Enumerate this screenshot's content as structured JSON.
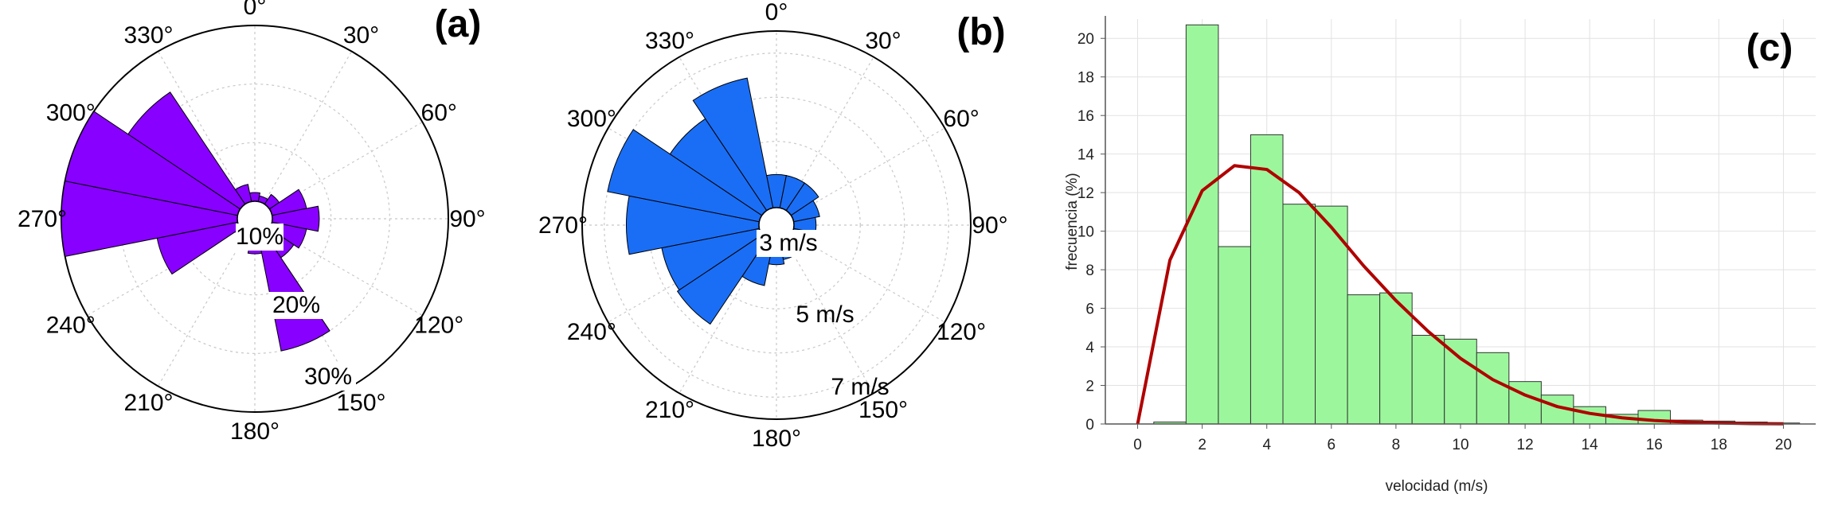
{
  "chart_data": [
    {
      "type": "polar-bar",
      "panel_label": "(a)",
      "color": "#8800ff",
      "angle_ticks": [
        "0°",
        "30°",
        "60°",
        "90°",
        "120°",
        "150°",
        "180°",
        "210°",
        "240°",
        "270°",
        "300°",
        "330°"
      ],
      "ring_labels": [
        "10%",
        "20%",
        "30%"
      ],
      "ring_values": [
        10,
        20,
        30
      ],
      "rmax": 30,
      "sectors": [
        {
          "center_deg": 0,
          "value": 1.5
        },
        {
          "center_deg": 22.5,
          "value": 1.0
        },
        {
          "center_deg": 45,
          "value": 2.0
        },
        {
          "center_deg": 67.5,
          "value": 6.0
        },
        {
          "center_deg": 90,
          "value": 8.0
        },
        {
          "center_deg": 112.5,
          "value": 6.0
        },
        {
          "center_deg": 135,
          "value": 5.0
        },
        {
          "center_deg": 157.5,
          "value": 20.0
        },
        {
          "center_deg": 180,
          "value": 3.0
        },
        {
          "center_deg": 202.5,
          "value": 1.0
        },
        {
          "center_deg": 225,
          "value": 1.0
        },
        {
          "center_deg": 247.5,
          "value": 14.0
        },
        {
          "center_deg": 270,
          "value": 30.0
        },
        {
          "center_deg": 292.5,
          "value": 30.0
        },
        {
          "center_deg": 315,
          "value": 23.0
        },
        {
          "center_deg": 337.5,
          "value": 3.0
        }
      ]
    },
    {
      "type": "polar-bar",
      "panel_label": "(b)",
      "color": "#1a6ef5",
      "angle_ticks": [
        "0°",
        "30°",
        "60°",
        "90°",
        "120°",
        "150°",
        "180°",
        "210°",
        "240°",
        "270°",
        "300°",
        "330°"
      ],
      "ring_labels": [
        "3 m/s",
        "5 m/s",
        "7 m/s"
      ],
      "ring_values": [
        3,
        5,
        7
      ],
      "rmax": 8,
      "sectors": [
        {
          "center_deg": 0,
          "value": 1.5
        },
        {
          "center_deg": 22.5,
          "value": 1.5
        },
        {
          "center_deg": 45,
          "value": 1.5
        },
        {
          "center_deg": 67.5,
          "value": 1.2
        },
        {
          "center_deg": 90,
          "value": 1.0
        },
        {
          "center_deg": 112.5,
          "value": 0.8
        },
        {
          "center_deg": 135,
          "value": 0.8
        },
        {
          "center_deg": 157.5,
          "value": 0.8
        },
        {
          "center_deg": 180,
          "value": 1.0
        },
        {
          "center_deg": 202.5,
          "value": 2.0
        },
        {
          "center_deg": 225,
          "value": 4.6
        },
        {
          "center_deg": 247.5,
          "value": 4.5
        },
        {
          "center_deg": 270,
          "value": 6.0
        },
        {
          "center_deg": 292.5,
          "value": 7.0
        },
        {
          "center_deg": 315,
          "value": 5.0
        },
        {
          "center_deg": 337.5,
          "value": 6.0
        }
      ]
    },
    {
      "type": "bar",
      "panel_label": "(c)",
      "xlabel": "velocidad (m/s)",
      "ylabel": "frecuencia (%)",
      "xlim": [
        -1,
        21
      ],
      "ylim": [
        0,
        21
      ],
      "xticks": [
        0,
        2,
        4,
        6,
        8,
        10,
        12,
        14,
        16,
        18,
        20
      ],
      "yticks": [
        0,
        2,
        4,
        6,
        8,
        10,
        12,
        14,
        16,
        18,
        20
      ],
      "bar_color": "#9cf79c",
      "line_color": "#b00000",
      "bins": [
        {
          "from": 0.5,
          "to": 1.5,
          "value": 0.1
        },
        {
          "from": 1.5,
          "to": 2.5,
          "value": 20.7
        },
        {
          "from": 2.5,
          "to": 3.5,
          "value": 9.2
        },
        {
          "from": 3.5,
          "to": 4.5,
          "value": 15.0
        },
        {
          "from": 4.5,
          "to": 5.5,
          "value": 11.4
        },
        {
          "from": 5.5,
          "to": 6.5,
          "value": 11.3
        },
        {
          "from": 6.5,
          "to": 7.5,
          "value": 6.7
        },
        {
          "from": 7.5,
          "to": 8.5,
          "value": 6.8
        },
        {
          "from": 8.5,
          "to": 9.5,
          "value": 4.6
        },
        {
          "from": 9.5,
          "to": 10.5,
          "value": 4.4
        },
        {
          "from": 10.5,
          "to": 11.5,
          "value": 3.7
        },
        {
          "from": 11.5,
          "to": 12.5,
          "value": 2.2
        },
        {
          "from": 12.5,
          "to": 13.5,
          "value": 1.5
        },
        {
          "from": 13.5,
          "to": 14.5,
          "value": 0.9
        },
        {
          "from": 14.5,
          "to": 15.5,
          "value": 0.5
        },
        {
          "from": 15.5,
          "to": 16.5,
          "value": 0.7
        },
        {
          "from": 16.5,
          "to": 17.5,
          "value": 0.2
        },
        {
          "from": 17.5,
          "to": 18.5,
          "value": 0.15
        },
        {
          "from": 18.5,
          "to": 19.5,
          "value": 0.1
        },
        {
          "from": 19.5,
          "to": 20.5,
          "value": 0.05
        }
      ],
      "fit_curve": {
        "x": [
          0,
          1,
          2,
          3,
          4,
          5,
          6,
          7,
          8,
          9,
          10,
          11,
          12,
          13,
          14,
          15,
          16,
          17,
          18,
          19,
          20
        ],
        "y": [
          0,
          8.5,
          12.1,
          13.4,
          13.2,
          12.0,
          10.2,
          8.2,
          6.4,
          4.8,
          3.4,
          2.3,
          1.5,
          0.9,
          0.55,
          0.32,
          0.18,
          0.1,
          0.05,
          0.02,
          0.01
        ]
      }
    }
  ]
}
